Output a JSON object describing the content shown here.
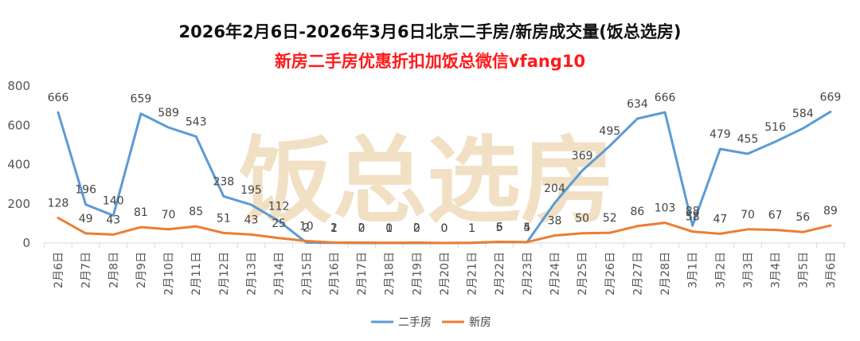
{
  "chart_data": {
    "type": "line",
    "title": "2026年2月6日-2026年3月6日北京二手房/新房成交量(饭总选房)",
    "subtitle": "新房二手房优惠折扣加饭总微信vfang10",
    "watermark": "饭总选房",
    "categories": [
      "2月6日",
      "2月7日",
      "2月8日",
      "2月9日",
      "2月10日",
      "2月11日",
      "2月12日",
      "2月13日",
      "2月14日",
      "2月15日",
      "2月16日",
      "2月17日",
      "2月18日",
      "2月19日",
      "2月20日",
      "2月21日",
      "2月22日",
      "2月23日",
      "2月24日",
      "2月25日",
      "2月26日",
      "2月27日",
      "2月28日",
      "3月1日",
      "3月2日",
      "3月3日",
      "3月4日",
      "3月5日",
      "3月6日"
    ],
    "series": [
      {
        "name": "二手房",
        "color": "#5b9bd5",
        "values": [
          666,
          196,
          140,
          659,
          589,
          543,
          238,
          195,
          112,
          2,
          1,
          0,
          0,
          0,
          0,
          1,
          5,
          4,
          204,
          369,
          495,
          634,
          666,
          88,
          479,
          455,
          516,
          584,
          669
        ]
      },
      {
        "name": "新房",
        "color": "#ed7d31",
        "values": [
          128,
          49,
          43,
          81,
          70,
          85,
          51,
          43,
          25,
          10,
          2,
          2,
          1,
          2,
          0,
          1,
          6,
          5,
          38,
          50,
          52,
          86,
          103,
          58,
          47,
          70,
          67,
          56,
          89
        ]
      }
    ],
    "ylim": [
      0,
      800
    ],
    "yticks": [
      0,
      200,
      400,
      600,
      800
    ],
    "xlabel": "",
    "ylabel": "",
    "grid": false,
    "legend": "bottom"
  }
}
